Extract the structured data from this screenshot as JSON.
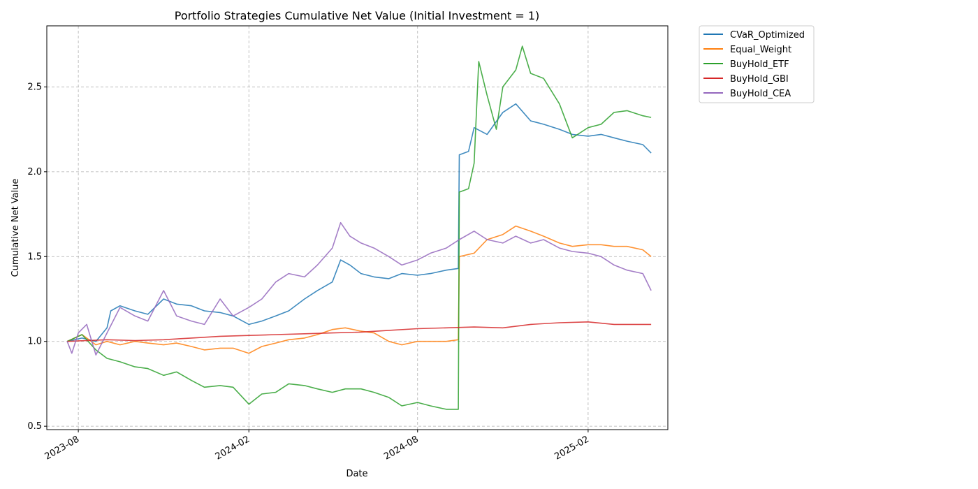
{
  "chart_data": {
    "type": "line",
    "title": "Portfolio Strategies Cumulative Net Value (Initial Investment = 1)",
    "xlabel": "Date",
    "ylabel": "Cumulative Net Value",
    "x_ticks": [
      "2023-08",
      "2024-02",
      "2024-08",
      "2025-02"
    ],
    "y_ticks": [
      "0.5",
      "1.0",
      "1.5",
      "2.0",
      "2.5"
    ],
    "xlim": [
      "2023-06-28",
      "2025-04-28"
    ],
    "ylim": [
      0.48,
      2.86
    ],
    "grid": true,
    "legend_position": "outside-upper-right",
    "series": [
      {
        "name": "CVaR_Optimized",
        "color": "#1f77b4",
        "points": [
          [
            "2023-07-20",
            1.0
          ],
          [
            "2023-08-05",
            1.02
          ],
          [
            "2023-08-20",
            1.0
          ],
          [
            "2023-09-01",
            1.08
          ],
          [
            "2023-09-05",
            1.18
          ],
          [
            "2023-09-15",
            1.21
          ],
          [
            "2023-10-01",
            1.18
          ],
          [
            "2023-10-15",
            1.16
          ],
          [
            "2023-11-01",
            1.25
          ],
          [
            "2023-11-15",
            1.22
          ],
          [
            "2023-12-01",
            1.21
          ],
          [
            "2023-12-15",
            1.18
          ],
          [
            "2024-01-01",
            1.17
          ],
          [
            "2024-01-15",
            1.15
          ],
          [
            "2024-02-01",
            1.1
          ],
          [
            "2024-02-15",
            1.12
          ],
          [
            "2024-03-01",
            1.15
          ],
          [
            "2024-03-15",
            1.18
          ],
          [
            "2024-04-01",
            1.25
          ],
          [
            "2024-04-15",
            1.3
          ],
          [
            "2024-05-01",
            1.35
          ],
          [
            "2024-05-10",
            1.48
          ],
          [
            "2024-05-20",
            1.45
          ],
          [
            "2024-06-01",
            1.4
          ],
          [
            "2024-06-15",
            1.38
          ],
          [
            "2024-07-01",
            1.37
          ],
          [
            "2024-07-15",
            1.4
          ],
          [
            "2024-08-01",
            1.39
          ],
          [
            "2024-08-15",
            1.4
          ],
          [
            "2024-09-01",
            1.42
          ],
          [
            "2024-09-14",
            1.43
          ],
          [
            "2024-09-15",
            2.1
          ],
          [
            "2024-09-25",
            2.12
          ],
          [
            "2024-10-01",
            2.26
          ],
          [
            "2024-10-15",
            2.22
          ],
          [
            "2024-11-01",
            2.35
          ],
          [
            "2024-11-15",
            2.4
          ],
          [
            "2024-12-01",
            2.3
          ],
          [
            "2024-12-15",
            2.28
          ],
          [
            "2025-01-01",
            2.25
          ],
          [
            "2025-01-15",
            2.22
          ],
          [
            "2025-02-01",
            2.21
          ],
          [
            "2025-02-15",
            2.22
          ],
          [
            "2025-03-01",
            2.2
          ],
          [
            "2025-03-15",
            2.18
          ],
          [
            "2025-04-01",
            2.16
          ],
          [
            "2025-04-10",
            2.11
          ]
        ]
      },
      {
        "name": "Equal_Weight",
        "color": "#ff7f0e",
        "points": [
          [
            "2023-07-20",
            1.0
          ],
          [
            "2023-08-05",
            1.04
          ],
          [
            "2023-08-20",
            0.98
          ],
          [
            "2023-09-01",
            1.0
          ],
          [
            "2023-09-15",
            0.98
          ],
          [
            "2023-10-01",
            1.0
          ],
          [
            "2023-10-15",
            0.99
          ],
          [
            "2023-11-01",
            0.98
          ],
          [
            "2023-11-15",
            0.99
          ],
          [
            "2023-12-01",
            0.97
          ],
          [
            "2023-12-15",
            0.95
          ],
          [
            "2024-01-01",
            0.96
          ],
          [
            "2024-01-15",
            0.96
          ],
          [
            "2024-02-01",
            0.93
          ],
          [
            "2024-02-15",
            0.97
          ],
          [
            "2024-03-01",
            0.99
          ],
          [
            "2024-03-15",
            1.01
          ],
          [
            "2024-04-01",
            1.02
          ],
          [
            "2024-04-15",
            1.04
          ],
          [
            "2024-05-01",
            1.07
          ],
          [
            "2024-05-15",
            1.08
          ],
          [
            "2024-06-01",
            1.06
          ],
          [
            "2024-06-15",
            1.05
          ],
          [
            "2024-07-01",
            1.0
          ],
          [
            "2024-07-15",
            0.98
          ],
          [
            "2024-08-01",
            1.0
          ],
          [
            "2024-08-15",
            1.0
          ],
          [
            "2024-09-01",
            1.0
          ],
          [
            "2024-09-14",
            1.01
          ],
          [
            "2024-09-15",
            1.5
          ],
          [
            "2024-10-01",
            1.52
          ],
          [
            "2024-10-15",
            1.6
          ],
          [
            "2024-11-01",
            1.63
          ],
          [
            "2024-11-15",
            1.68
          ],
          [
            "2024-12-01",
            1.65
          ],
          [
            "2024-12-15",
            1.62
          ],
          [
            "2025-01-01",
            1.58
          ],
          [
            "2025-01-15",
            1.56
          ],
          [
            "2025-02-01",
            1.57
          ],
          [
            "2025-02-15",
            1.57
          ],
          [
            "2025-03-01",
            1.56
          ],
          [
            "2025-03-15",
            1.56
          ],
          [
            "2025-04-01",
            1.54
          ],
          [
            "2025-04-10",
            1.5
          ]
        ]
      },
      {
        "name": "BuyHold_ETF",
        "color": "#2ca02c",
        "points": [
          [
            "2023-07-20",
            1.0
          ],
          [
            "2023-08-05",
            1.04
          ],
          [
            "2023-08-20",
            0.95
          ],
          [
            "2023-09-01",
            0.9
          ],
          [
            "2023-09-15",
            0.88
          ],
          [
            "2023-10-01",
            0.85
          ],
          [
            "2023-10-15",
            0.84
          ],
          [
            "2023-11-01",
            0.8
          ],
          [
            "2023-11-15",
            0.82
          ],
          [
            "2023-12-01",
            0.77
          ],
          [
            "2023-12-15",
            0.73
          ],
          [
            "2024-01-01",
            0.74
          ],
          [
            "2024-01-15",
            0.73
          ],
          [
            "2024-02-01",
            0.63
          ],
          [
            "2024-02-15",
            0.69
          ],
          [
            "2024-03-01",
            0.7
          ],
          [
            "2024-03-15",
            0.75
          ],
          [
            "2024-04-01",
            0.74
          ],
          [
            "2024-04-15",
            0.72
          ],
          [
            "2024-05-01",
            0.7
          ],
          [
            "2024-05-15",
            0.72
          ],
          [
            "2024-06-01",
            0.72
          ],
          [
            "2024-06-15",
            0.7
          ],
          [
            "2024-07-01",
            0.67
          ],
          [
            "2024-07-15",
            0.62
          ],
          [
            "2024-08-01",
            0.64
          ],
          [
            "2024-08-15",
            0.62
          ],
          [
            "2024-09-01",
            0.6
          ],
          [
            "2024-09-14",
            0.6
          ],
          [
            "2024-09-15",
            1.88
          ],
          [
            "2024-09-25",
            1.9
          ],
          [
            "2024-10-01",
            2.05
          ],
          [
            "2024-10-06",
            2.65
          ],
          [
            "2024-10-15",
            2.45
          ],
          [
            "2024-10-25",
            2.25
          ],
          [
            "2024-11-01",
            2.5
          ],
          [
            "2024-11-15",
            2.6
          ],
          [
            "2024-11-22",
            2.74
          ],
          [
            "2024-12-01",
            2.58
          ],
          [
            "2024-12-15",
            2.55
          ],
          [
            "2025-01-01",
            2.4
          ],
          [
            "2025-01-15",
            2.2
          ],
          [
            "2025-02-01",
            2.26
          ],
          [
            "2025-02-15",
            2.28
          ],
          [
            "2025-03-01",
            2.35
          ],
          [
            "2025-03-15",
            2.36
          ],
          [
            "2025-04-01",
            2.33
          ],
          [
            "2025-04-10",
            2.32
          ]
        ]
      },
      {
        "name": "BuyHold_GBI",
        "color": "#d62728",
        "points": [
          [
            "2023-07-20",
            1.0
          ],
          [
            "2023-09-01",
            1.01
          ],
          [
            "2023-10-01",
            1.005
          ],
          [
            "2023-11-01",
            1.01
          ],
          [
            "2023-12-01",
            1.02
          ],
          [
            "2024-01-01",
            1.03
          ],
          [
            "2024-02-01",
            1.035
          ],
          [
            "2024-03-01",
            1.04
          ],
          [
            "2024-04-01",
            1.045
          ],
          [
            "2024-05-01",
            1.05
          ],
          [
            "2024-06-01",
            1.055
          ],
          [
            "2024-07-01",
            1.065
          ],
          [
            "2024-08-01",
            1.075
          ],
          [
            "2024-09-01",
            1.08
          ],
          [
            "2024-10-01",
            1.085
          ],
          [
            "2024-11-01",
            1.08
          ],
          [
            "2024-12-01",
            1.1
          ],
          [
            "2025-01-01",
            1.11
          ],
          [
            "2025-02-01",
            1.115
          ],
          [
            "2025-03-01",
            1.1
          ],
          [
            "2025-04-10",
            1.1
          ]
        ]
      },
      {
        "name": "BuyHold_CEA",
        "color": "#9467bd",
        "points": [
          [
            "2023-07-20",
            1.0
          ],
          [
            "2023-07-25",
            0.93
          ],
          [
            "2023-08-01",
            1.05
          ],
          [
            "2023-08-10",
            1.1
          ],
          [
            "2023-08-20",
            0.92
          ],
          [
            "2023-09-01",
            1.05
          ],
          [
            "2023-09-15",
            1.2
          ],
          [
            "2023-10-01",
            1.15
          ],
          [
            "2023-10-15",
            1.12
          ],
          [
            "2023-11-01",
            1.3
          ],
          [
            "2023-11-15",
            1.15
          ],
          [
            "2023-12-01",
            1.12
          ],
          [
            "2023-12-15",
            1.1
          ],
          [
            "2024-01-01",
            1.25
          ],
          [
            "2024-01-15",
            1.15
          ],
          [
            "2024-02-01",
            1.2
          ],
          [
            "2024-02-15",
            1.25
          ],
          [
            "2024-03-01",
            1.35
          ],
          [
            "2024-03-15",
            1.4
          ],
          [
            "2024-04-01",
            1.38
          ],
          [
            "2024-04-15",
            1.45
          ],
          [
            "2024-05-01",
            1.55
          ],
          [
            "2024-05-10",
            1.7
          ],
          [
            "2024-05-20",
            1.62
          ],
          [
            "2024-06-01",
            1.58
          ],
          [
            "2024-06-15",
            1.55
          ],
          [
            "2024-07-01",
            1.5
          ],
          [
            "2024-07-15",
            1.45
          ],
          [
            "2024-08-01",
            1.48
          ],
          [
            "2024-08-15",
            1.52
          ],
          [
            "2024-09-01",
            1.55
          ],
          [
            "2024-09-15",
            1.6
          ],
          [
            "2024-10-01",
            1.65
          ],
          [
            "2024-10-15",
            1.6
          ],
          [
            "2024-11-01",
            1.58
          ],
          [
            "2024-11-15",
            1.62
          ],
          [
            "2024-12-01",
            1.58
          ],
          [
            "2024-12-15",
            1.6
          ],
          [
            "2025-01-01",
            1.55
          ],
          [
            "2025-01-15",
            1.53
          ],
          [
            "2025-02-01",
            1.52
          ],
          [
            "2025-02-15",
            1.5
          ],
          [
            "2025-03-01",
            1.45
          ],
          [
            "2025-03-15",
            1.42
          ],
          [
            "2025-04-01",
            1.4
          ],
          [
            "2025-04-10",
            1.3
          ]
        ]
      }
    ]
  }
}
